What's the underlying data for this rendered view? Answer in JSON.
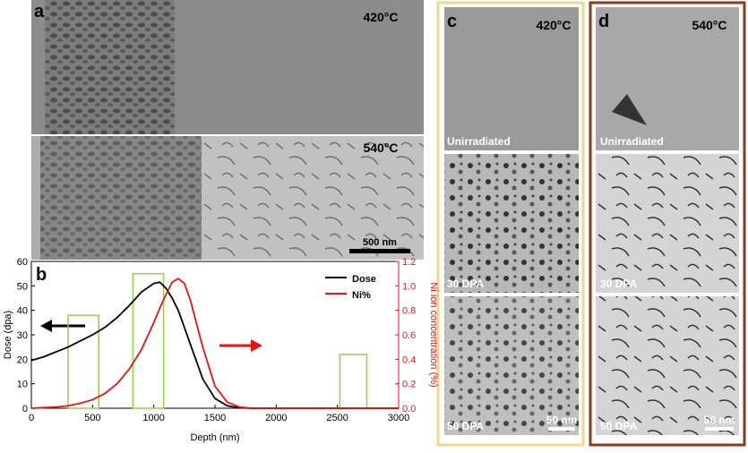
{
  "figure": {
    "a": {
      "label": "a",
      "top_temp": "420°C",
      "bottom_temp": "540°C",
      "scale_bar": "500 nm"
    },
    "c": {
      "label": "c",
      "temp": "420°C",
      "images": [
        "Unirradiated",
        "30 DPA",
        "50 DPA"
      ],
      "scale_bar": "50 nm"
    },
    "d": {
      "label": "d",
      "temp": "540°C",
      "images": [
        "Unirradiated",
        "30 DPA",
        "50 DPA"
      ],
      "scale_bar": "50 nm"
    }
  },
  "chart_data": {
    "type": "line",
    "panel_label": "b",
    "xlabel": "Depth (nm)",
    "ylabel": "Dose (dpa)",
    "y2label": "Ni ion concentration (%)",
    "x": [
      0,
      100,
      200,
      300,
      400,
      500,
      600,
      700,
      800,
      900,
      1000,
      1050,
      1100,
      1150,
      1200,
      1250,
      1300,
      1400,
      1500,
      1600,
      1700,
      1800,
      2000,
      2500,
      3000
    ],
    "series": [
      {
        "name": "Dose",
        "color": "#000000",
        "values": [
          19.5,
          21,
          23,
          25,
          27.5,
          30,
          33,
          37,
          42,
          47.5,
          51,
          51.5,
          49,
          45,
          40,
          33,
          26,
          12,
          4,
          1,
          0.2,
          0,
          0,
          0,
          0
        ]
      },
      {
        "name": "Ni%",
        "color": "#ee1111",
        "axis": "y2",
        "values": [
          0,
          0.005,
          0.01,
          0.02,
          0.04,
          0.07,
          0.12,
          0.2,
          0.32,
          0.48,
          0.7,
          0.82,
          0.93,
          1.03,
          1.06,
          1.02,
          0.88,
          0.5,
          0.18,
          0.05,
          0.01,
          0,
          0,
          0,
          0
        ]
      }
    ],
    "regions": [
      {
        "x": [
          300,
          550
        ],
        "y": 38
      },
      {
        "x": [
          830,
          1080
        ],
        "y": 55
      },
      {
        "x": [
          2520,
          2740
        ],
        "y": 22
      }
    ],
    "region_color": "#8fd14f",
    "xlim": [
      0,
      3000
    ],
    "xticks": [
      0,
      500,
      1000,
      1500,
      2000,
      2500,
      3000
    ],
    "ylim": [
      0,
      60
    ],
    "yticks": [
      0,
      10,
      20,
      30,
      40,
      50,
      60
    ],
    "y2lim": [
      0,
      1.2
    ],
    "y2ticks": [
      {
        "value": 0,
        "label": "0.0"
      },
      0.2,
      0.4,
      0.6,
      0.8,
      {
        "value": 1,
        "label": "1.0"
      },
      1.2
    ],
    "legend": "upper right"
  }
}
